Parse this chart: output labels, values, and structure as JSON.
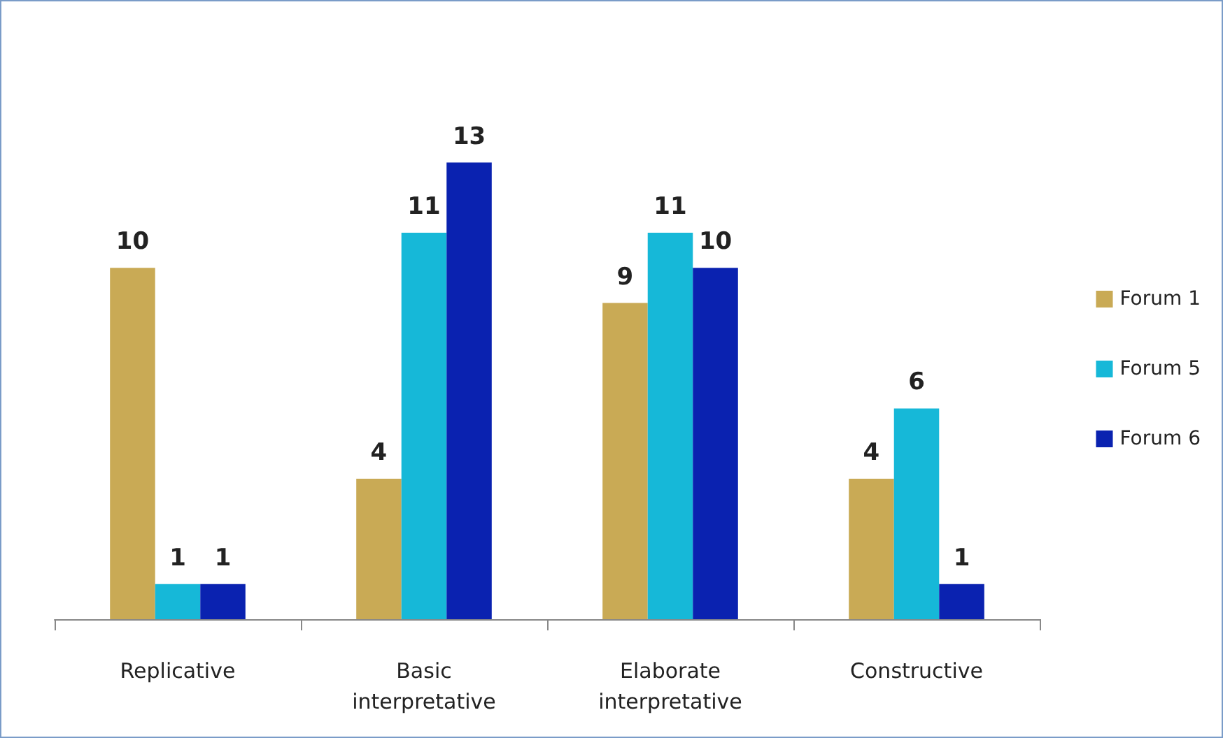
{
  "chart_data": {
    "type": "bar",
    "categories": [
      "Replicative",
      "Basic\ninterpretative",
      "Elaborate\ninterpretative",
      "Constructive"
    ],
    "series": [
      {
        "name": "Forum 1",
        "color": "#c9aa55",
        "values": [
          10,
          4,
          9,
          4
        ]
      },
      {
        "name": "Forum 5",
        "color": "#16b8d8",
        "values": [
          1,
          11,
          11,
          6
        ]
      },
      {
        "name": "Forum 6",
        "color": "#0a22b0",
        "values": [
          1,
          13,
          10,
          1
        ]
      }
    ],
    "data_labels": true,
    "legend": "right"
  }
}
